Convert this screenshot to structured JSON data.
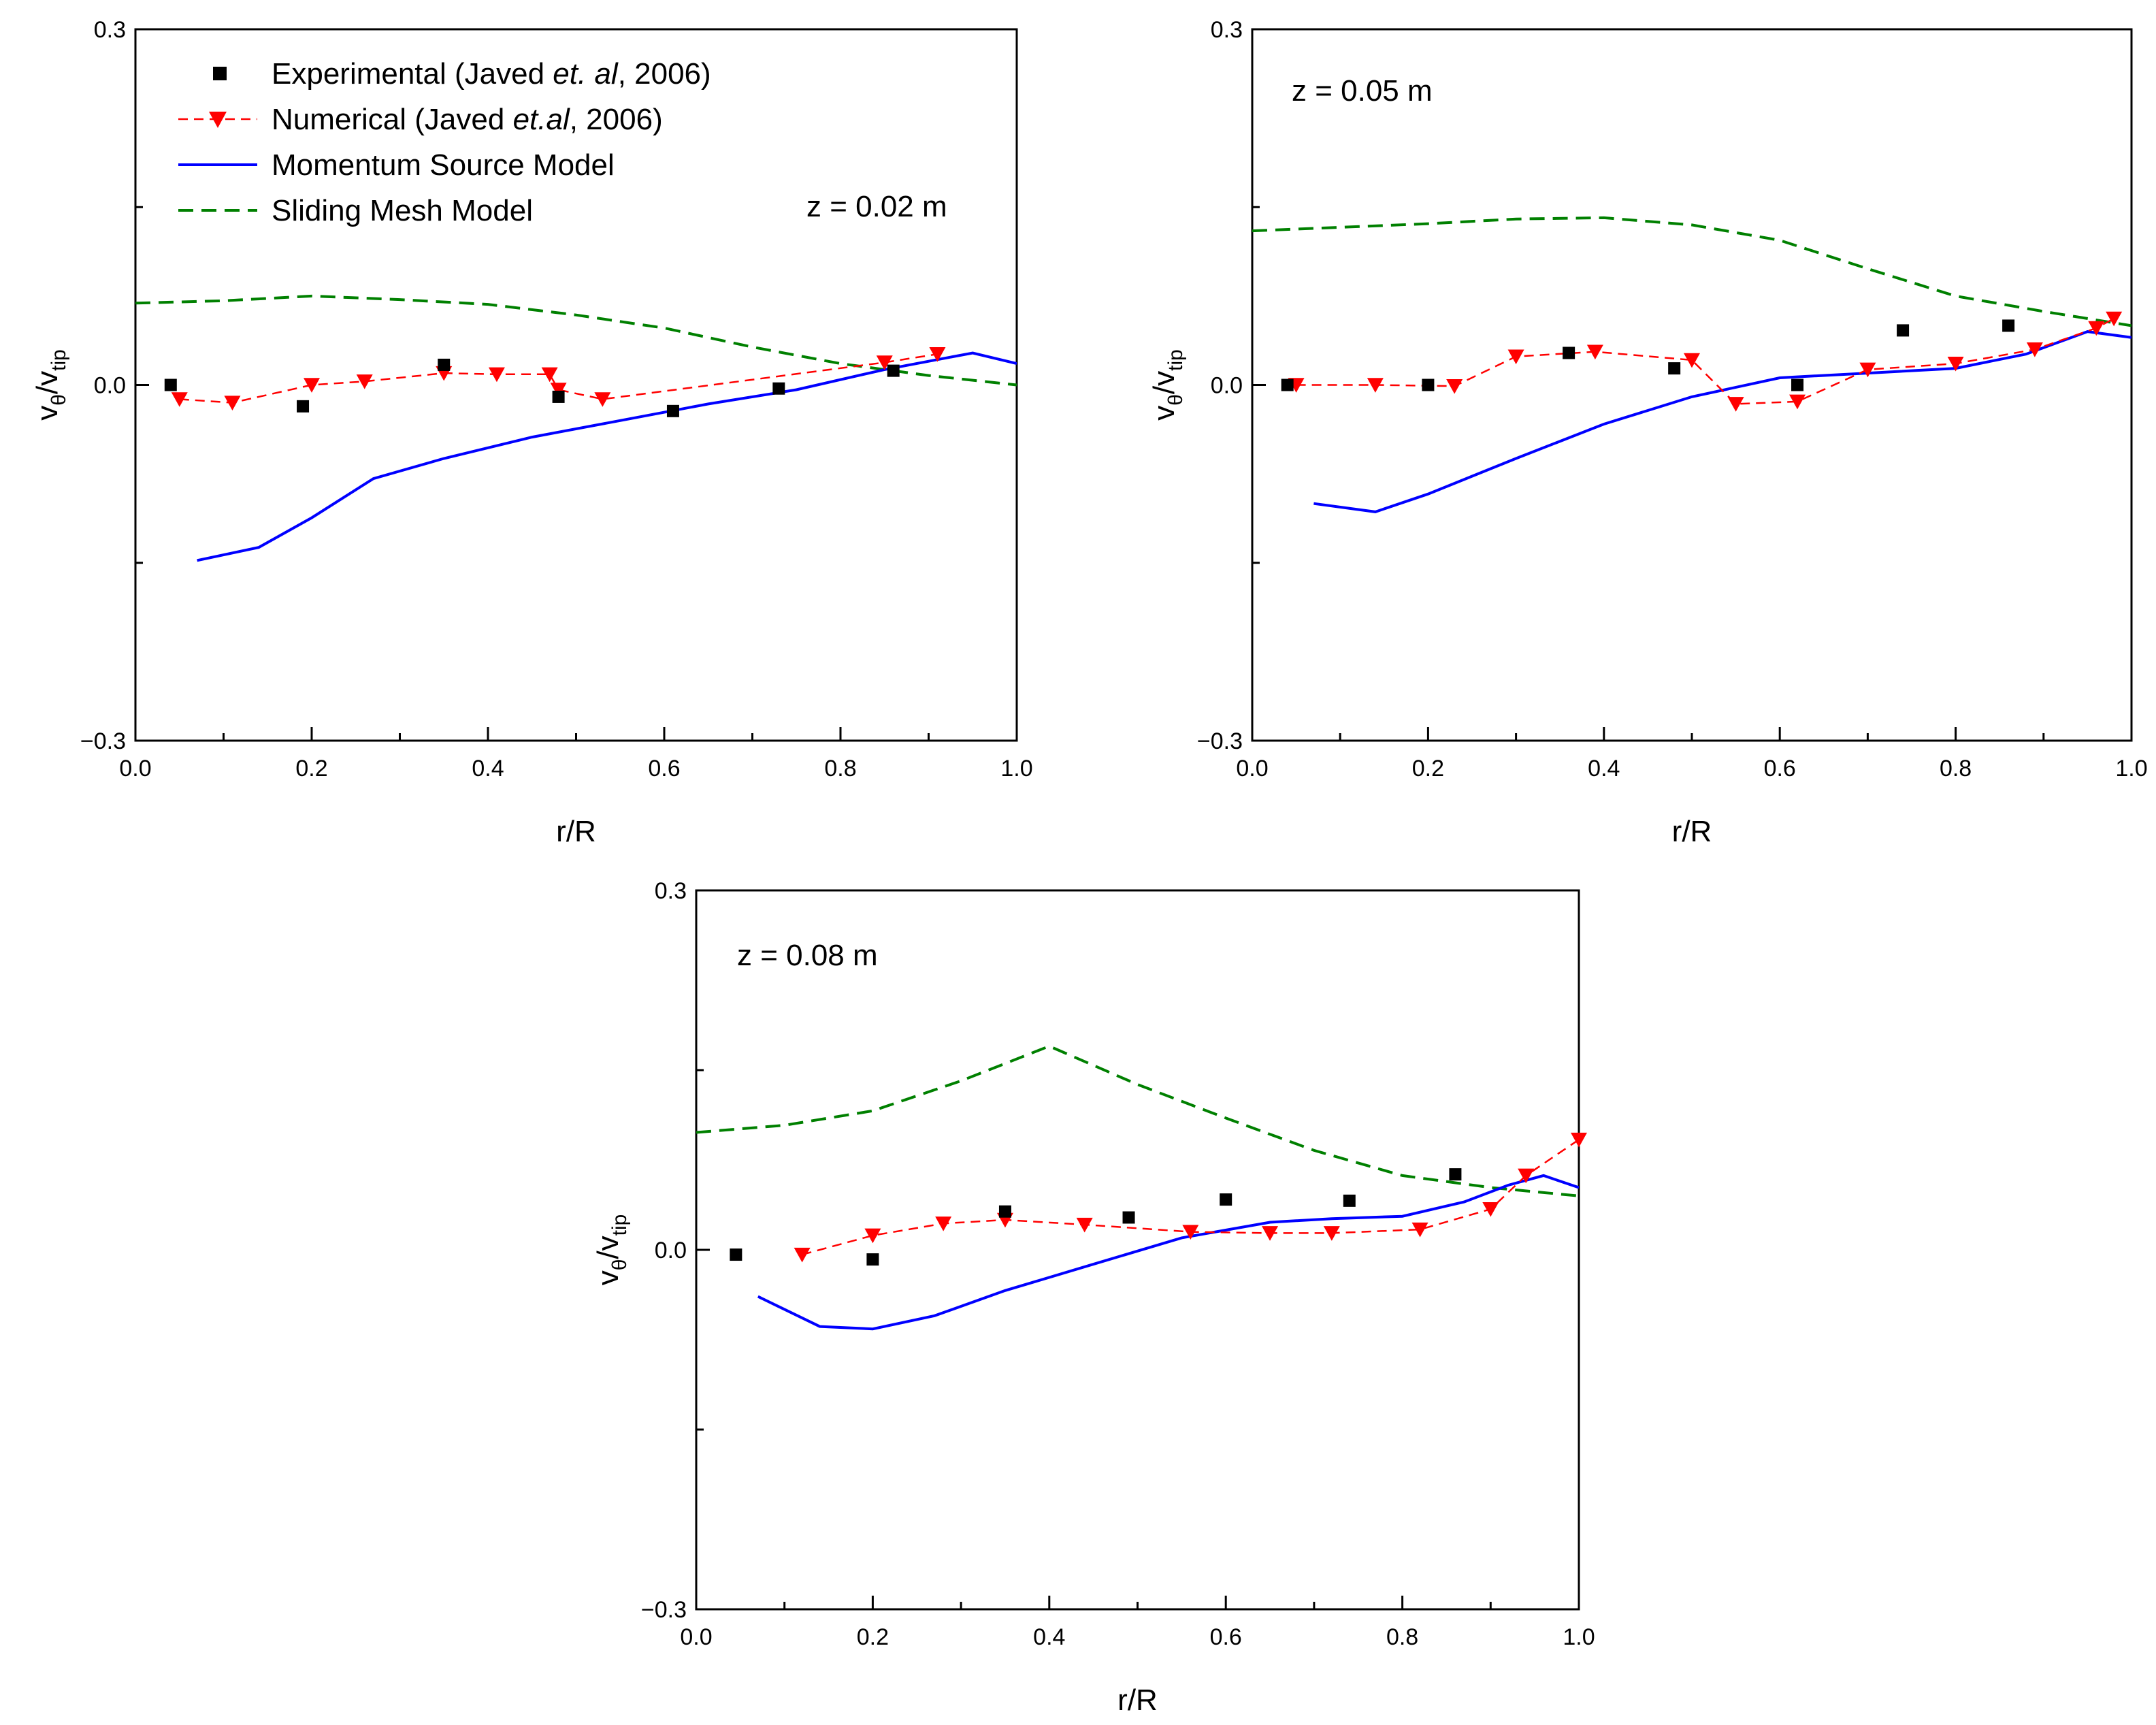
{
  "legend": [
    {
      "key": "exp",
      "prefix": "Experimental (Javed ",
      "italic": "et. al",
      "suffix": ", 2006)"
    },
    {
      "key": "num",
      "prefix": "Numerical (Javed ",
      "italic": "et.al",
      "suffix": ", 2006)"
    },
    {
      "key": "msm",
      "prefix": "Momentum Source Model",
      "italic": "",
      "suffix": ""
    },
    {
      "key": "smm",
      "prefix": "Sliding Mesh Model",
      "italic": "",
      "suffix": ""
    }
  ],
  "colors": {
    "exp": "#000000",
    "num": "#ff0000",
    "msm": "#0000ff",
    "smm": "#008000"
  },
  "chart_data": [
    {
      "type": "line",
      "annotation": "z = 0.02 m",
      "xlabel": "r/R",
      "ylabel": "vθ/vtip",
      "ylabel_main": "v",
      "ylabel_sub1": "θ",
      "ylabel_div": "/v",
      "ylabel_sub2": "tip",
      "xlim": [
        0.0,
        1.0
      ],
      "ylim": [
        -0.3,
        0.3
      ],
      "xticks": [
        "0.0",
        "0.2",
        "0.4",
        "0.6",
        "0.8",
        "1.0"
      ],
      "yticks": [
        "−0.3",
        "0.0",
        "0.3"
      ],
      "series": [
        {
          "key": "exp",
          "name": "Experimental (Javed et. al, 2006)",
          "style": "markers-square",
          "x": [
            0.04,
            0.19,
            0.35,
            0.48,
            0.61,
            0.73,
            0.86
          ],
          "y": [
            0.0,
            -0.018,
            0.017,
            -0.01,
            -0.022,
            -0.003,
            0.012
          ]
        },
        {
          "key": "num",
          "name": "Numerical (Javed et.al, 2006)",
          "style": "dashed-triangle",
          "x": [
            0.05,
            0.11,
            0.2,
            0.26,
            0.35,
            0.41,
            0.47,
            0.48,
            0.53,
            0.85,
            0.91
          ],
          "y": [
            -0.012,
            -0.015,
            0.0,
            0.003,
            0.01,
            0.009,
            0.009,
            -0.004,
            -0.012,
            0.019,
            0.026
          ]
        },
        {
          "key": "msm",
          "name": "Momentum Source Model",
          "style": "solid",
          "x": [
            0.07,
            0.14,
            0.2,
            0.27,
            0.35,
            0.45,
            0.55,
            0.65,
            0.75,
            0.85,
            0.95,
            1.0
          ],
          "y": [
            -0.148,
            -0.137,
            -0.112,
            -0.079,
            -0.062,
            -0.044,
            -0.03,
            -0.016,
            -0.004,
            0.013,
            0.027,
            0.018
          ]
        },
        {
          "key": "smm",
          "name": "Sliding Mesh Model",
          "style": "dashed",
          "x": [
            0.0,
            0.1,
            0.2,
            0.3,
            0.4,
            0.5,
            0.6,
            0.7,
            0.8,
            0.9,
            1.0
          ],
          "y": [
            0.069,
            0.071,
            0.075,
            0.072,
            0.068,
            0.059,
            0.048,
            0.032,
            0.018,
            0.008,
            0.0
          ]
        }
      ]
    },
    {
      "type": "line",
      "annotation": "z = 0.05 m",
      "xlabel": "r/R",
      "ylabel": "vθ/vtip",
      "ylabel_main": "v",
      "ylabel_sub1": "θ",
      "ylabel_div": "/v",
      "ylabel_sub2": "tip",
      "xlim": [
        0.0,
        1.0
      ],
      "ylim": [
        -0.3,
        0.3
      ],
      "xticks": [
        "0.0",
        "0.2",
        "0.4",
        "0.6",
        "0.8",
        "1.0"
      ],
      "yticks": [
        "−0.3",
        "0.0",
        "0.3"
      ],
      "series": [
        {
          "key": "exp",
          "name": "Experimental (Javed et. al, 2006)",
          "style": "markers-square",
          "x": [
            0.04,
            0.2,
            0.36,
            0.48,
            0.62,
            0.74,
            0.86
          ],
          "y": [
            0.0,
            0.0,
            0.027,
            0.014,
            0.0,
            0.046,
            0.05
          ]
        },
        {
          "key": "num",
          "name": "Numerical (Javed et.al, 2006)",
          "style": "dashed-triangle",
          "x": [
            0.05,
            0.14,
            0.23,
            0.3,
            0.39,
            0.5,
            0.55,
            0.62,
            0.7,
            0.8,
            0.89,
            0.96,
            0.98
          ],
          "y": [
            0.0,
            0.0,
            -0.001,
            0.024,
            0.028,
            0.021,
            -0.016,
            -0.014,
            0.013,
            0.018,
            0.03,
            0.048,
            0.056
          ]
        },
        {
          "key": "msm",
          "name": "Momentum Source Model",
          "style": "solid",
          "x": [
            0.07,
            0.14,
            0.2,
            0.3,
            0.4,
            0.5,
            0.6,
            0.7,
            0.8,
            0.88,
            0.95,
            1.0
          ],
          "y": [
            -0.1,
            -0.107,
            -0.092,
            -0.062,
            -0.033,
            -0.01,
            0.006,
            0.01,
            0.014,
            0.026,
            0.045,
            0.04
          ]
        },
        {
          "key": "smm",
          "name": "Sliding Mesh Model",
          "style": "dashed",
          "x": [
            0.0,
            0.1,
            0.2,
            0.3,
            0.4,
            0.5,
            0.6,
            0.7,
            0.8,
            0.9,
            1.0
          ],
          "y": [
            0.13,
            0.133,
            0.136,
            0.14,
            0.141,
            0.135,
            0.122,
            0.098,
            0.075,
            0.062,
            0.05
          ]
        }
      ]
    },
    {
      "type": "line",
      "annotation": "z = 0.08 m",
      "xlabel": "r/R",
      "ylabel": "vθ/vtip",
      "ylabel_main": "v",
      "ylabel_sub1": "θ",
      "ylabel_div": "/v",
      "ylabel_sub2": "tip",
      "xlim": [
        0.0,
        1.0
      ],
      "ylim": [
        -0.3,
        0.3
      ],
      "xticks": [
        "0.0",
        "0.2",
        "0.4",
        "0.6",
        "0.8",
        "1.0"
      ],
      "yticks": [
        "−0.3",
        "0.0",
        "0.3"
      ],
      "series": [
        {
          "key": "exp",
          "name": "Experimental (Javed et. al, 2006)",
          "style": "markers-square",
          "x": [
            0.045,
            0.2,
            0.35,
            0.49,
            0.6,
            0.74,
            0.86
          ],
          "y": [
            -0.004,
            -0.008,
            0.032,
            0.027,
            0.042,
            0.041,
            0.063
          ]
        },
        {
          "key": "num",
          "name": "Numerical (Javed et.al, 2006)",
          "style": "dashed-triangle",
          "x": [
            0.12,
            0.2,
            0.28,
            0.35,
            0.44,
            0.56,
            0.65,
            0.72,
            0.82,
            0.9,
            0.94,
            1.0
          ],
          "y": [
            -0.004,
            0.012,
            0.022,
            0.025,
            0.021,
            0.015,
            0.014,
            0.014,
            0.017,
            0.034,
            0.062,
            0.092
          ]
        },
        {
          "key": "msm",
          "name": "Momentum Source Model",
          "style": "solid",
          "x": [
            0.07,
            0.14,
            0.2,
            0.27,
            0.35,
            0.45,
            0.55,
            0.65,
            0.72,
            0.8,
            0.87,
            0.92,
            0.96,
            1.0
          ],
          "y": [
            -0.039,
            -0.064,
            -0.066,
            -0.055,
            -0.034,
            -0.012,
            0.01,
            0.023,
            0.026,
            0.028,
            0.04,
            0.054,
            0.062,
            0.052
          ]
        },
        {
          "key": "smm",
          "name": "Sliding Mesh Model",
          "style": "dashed",
          "x": [
            0.0,
            0.1,
            0.2,
            0.3,
            0.4,
            0.5,
            0.6,
            0.7,
            0.8,
            0.9,
            1.0
          ],
          "y": [
            0.098,
            0.104,
            0.116,
            0.141,
            0.17,
            0.138,
            0.11,
            0.083,
            0.062,
            0.052,
            0.045
          ]
        }
      ]
    }
  ]
}
